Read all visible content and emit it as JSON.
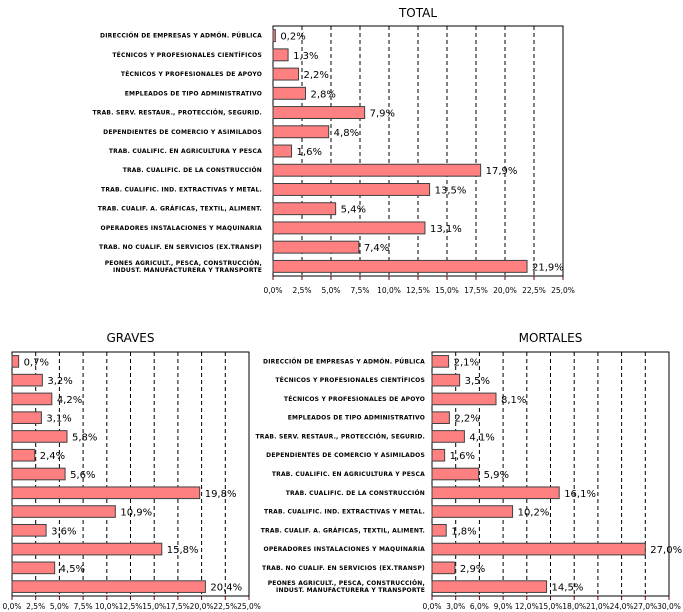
{
  "colors": {
    "bar_fill": "#FF8080",
    "bar_stroke": "#404040",
    "grid": "#000000"
  },
  "categories": [
    "DIRECCIÓN DE EMPRESAS Y ADMÓN. PÚBLICA",
    "TÉCNICOS Y PROFESIONALES CIENTÍFICOS",
    "TÉCNICOS Y PROFESIONALES DE APOYO",
    "EMPLEADOS DE TIPO ADMINISTRATIVO",
    "TRAB. SERV. RESTAUR., PROTECCIÓN, SEGURID.",
    "DEPENDIENTES DE COMERCIO Y ASIMILADOS",
    "TRAB. CUALIFIC. EN AGRICULTURA Y PESCA",
    "TRAB. CUALIFIC. DE LA CONSTRUCCIÓN",
    "TRAB. CUALIFIC. IND. EXTRACTIVAS Y METAL.",
    "TRAB. CUALIF. A. GRÁFICAS, TEXTIL, ALIMENT.",
    "OPERADORES INSTALACIONES Y MAQUINARIA",
    "TRAB. NO CUALIF. EN SERVICIOS (EX.TRANSP)",
    "PEONES AGRICULT., PESCA, CONSTRUCCIÓN,\nINDUST. MANUFACTURERA Y TRANSPORTE"
  ],
  "chart_data": [
    {
      "type": "bar",
      "orientation": "horizontal",
      "title": "TOTAL",
      "values": [
        0.2,
        1.3,
        2.2,
        2.8,
        7.9,
        4.8,
        1.6,
        17.9,
        13.5,
        5.4,
        13.1,
        7.4,
        21.9
      ],
      "data_labels": [
        "0,2%",
        "1,3%",
        "2,2%",
        "2,8%",
        "7,9%",
        "4,8%",
        "1,6%",
        "17,9%",
        "13,5%",
        "5,4%",
        "13,1%",
        "7,4%",
        "21,9%"
      ],
      "xlim": [
        0,
        25
      ],
      "ticks": [
        "0,0%",
        "2,5%",
        "5,0%",
        "7,5%",
        "10,0%",
        "12,5%",
        "15,0%",
        "17,5%",
        "20,0%",
        "22,5%",
        "25,0%"
      ],
      "grid": "vertical dashed",
      "show_categories": true
    },
    {
      "type": "bar",
      "orientation": "horizontal",
      "title": "GRAVES",
      "values": [
        0.7,
        3.2,
        4.2,
        3.1,
        5.8,
        2.4,
        5.6,
        19.8,
        10.9,
        3.6,
        15.8,
        4.5,
        20.4
      ],
      "data_labels": [
        "0,7%",
        "3,2%",
        "4,2%",
        "3,1%",
        "5,8%",
        "2,4%",
        "5,6%",
        "19,8%",
        "10,9%",
        "3,6%",
        "15,8%",
        "4,5%",
        "20,4%"
      ],
      "xlim": [
        0,
        25
      ],
      "ticks": [
        "0,0%",
        "2,5%",
        "5,0%",
        "7,5%",
        "10,0%",
        "12,5%",
        "15,0%",
        "17,5%",
        "20,0%",
        "22,5%",
        "25,0%"
      ],
      "grid": "vertical dashed",
      "show_categories": false
    },
    {
      "type": "bar",
      "orientation": "horizontal",
      "title": "MORTALES",
      "values": [
        2.1,
        3.5,
        8.1,
        2.2,
        4.1,
        1.6,
        5.9,
        16.1,
        10.2,
        1.8,
        27.0,
        2.9,
        14.5
      ],
      "data_labels": [
        "2,1%",
        "3,5%",
        "8,1%",
        "2,2%",
        "4,1%",
        "1,6%",
        "5,9%",
        "16,1%",
        "10,2%",
        "1,8%",
        "27,0%",
        "2,9%",
        "14,5%"
      ],
      "xlim": [
        0,
        30
      ],
      "ticks": [
        "0,0%",
        "3,0%",
        "6,0%",
        "9,0%",
        "12,0%",
        "15,0%",
        "18,0%",
        "21,0%",
        "24,0%",
        "27,0%",
        "30,0%"
      ],
      "grid": "vertical dashed",
      "show_categories": true
    }
  ]
}
